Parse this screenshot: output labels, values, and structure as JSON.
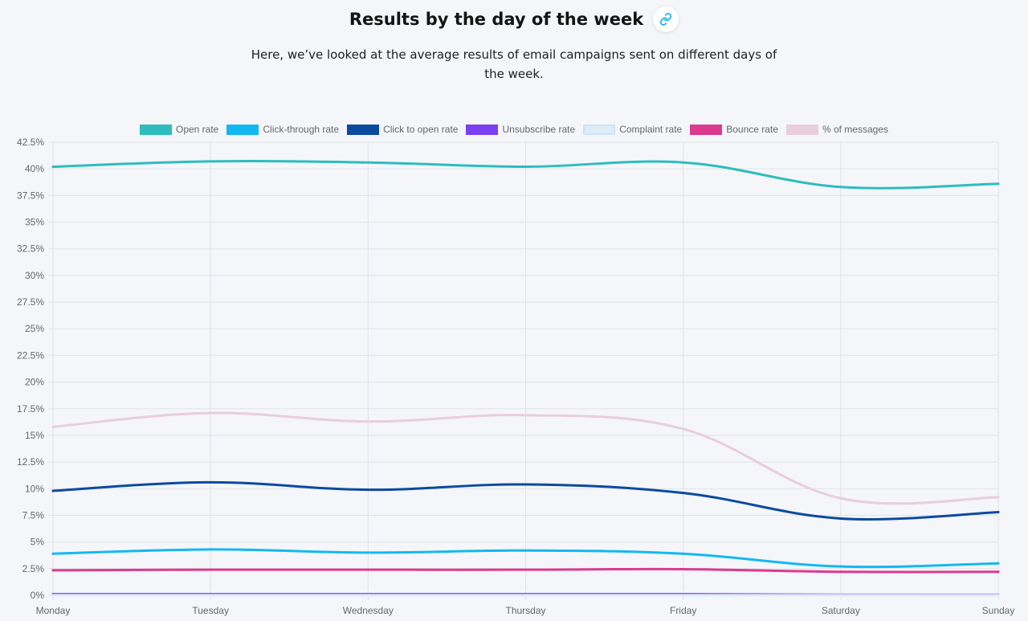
{
  "header": {
    "title": "Results by the day of the week",
    "subtitle": "Here, we’ve looked at the average results of email campaigns sent on different days of the week.",
    "link_icon": "link-icon"
  },
  "chart_data": {
    "type": "line",
    "title": "",
    "xlabel": "",
    "ylabel": "",
    "categories": [
      "Monday",
      "Tuesday",
      "Wednesday",
      "Thursday",
      "Friday",
      "Saturday",
      "Sunday"
    ],
    "ylim": [
      0,
      42.5
    ],
    "ytick_step": 2.5,
    "ytick_labels": [
      "0%",
      "2.5%",
      "5%",
      "7.5%",
      "10%",
      "12.5%",
      "15%",
      "17.5%",
      "20%",
      "22.5%",
      "25%",
      "27.5%",
      "30%",
      "32.5%",
      "35%",
      "37.5%",
      "40%",
      "42.5%"
    ],
    "grid": true,
    "legend_position": "top",
    "series": [
      {
        "name": "Open rate",
        "color": "#2dbdbd",
        "values": [
          40.2,
          40.7,
          40.6,
          40.2,
          40.6,
          38.3,
          38.6
        ]
      },
      {
        "name": "Click-through rate",
        "color": "#14b8f0",
        "values": [
          3.9,
          4.3,
          4.0,
          4.2,
          3.9,
          2.7,
          3.0
        ]
      },
      {
        "name": "Click to open rate",
        "color": "#0b4a9e",
        "values": [
          9.8,
          10.6,
          9.9,
          10.4,
          9.6,
          7.2,
          7.8
        ]
      },
      {
        "name": "Unsubscribe rate",
        "color": "#7b3ff2",
        "values": [
          0.1,
          0.1,
          0.1,
          0.1,
          0.1,
          0.05,
          0.05
        ]
      },
      {
        "name": "Complaint rate",
        "color": "#dcedf8",
        "values": [
          0.01,
          0.01,
          0.01,
          0.01,
          0.01,
          0.01,
          0.01
        ]
      },
      {
        "name": "Bounce rate",
        "color": "#dc3a8e",
        "values": [
          2.35,
          2.4,
          2.4,
          2.4,
          2.45,
          2.2,
          2.2
        ]
      },
      {
        "name": "% of messages",
        "color": "#e8cede",
        "values": [
          15.8,
          17.1,
          16.3,
          16.9,
          15.6,
          9.1,
          9.2
        ]
      }
    ]
  }
}
